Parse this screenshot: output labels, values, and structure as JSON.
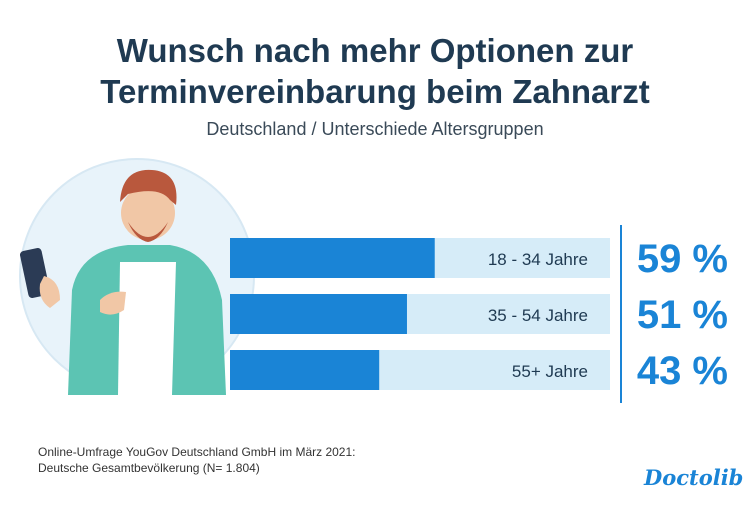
{
  "title_line1": "Wunsch nach mehr Optionen zur",
  "title_line2": "Terminvereinbarung beim Zahnarzt",
  "subtitle": "Deutschland / Unterschiede Altersgruppen",
  "footnote_line1": "Online-Umfrage YouGov Deutschland GmbH im März 2021:",
  "footnote_line2": "Deutsche Gesamtbevölkerung (N= 1.804)",
  "logo_text": "Doctolib",
  "colors": {
    "bar": "#1a84d6",
    "track": "#d6ecf8",
    "value_text": "#1a84d6",
    "label_text": "#1f3a52"
  },
  "chart_data": {
    "type": "bar",
    "orientation": "horizontal",
    "categories": [
      "18 - 34 Jahre",
      "35 - 54 Jahre",
      "55+ Jahre"
    ],
    "values": [
      59,
      51,
      43
    ],
    "value_labels": [
      "59 %",
      "51 %",
      "43 %"
    ],
    "xlim": [
      0,
      100
    ],
    "unit": "%"
  }
}
